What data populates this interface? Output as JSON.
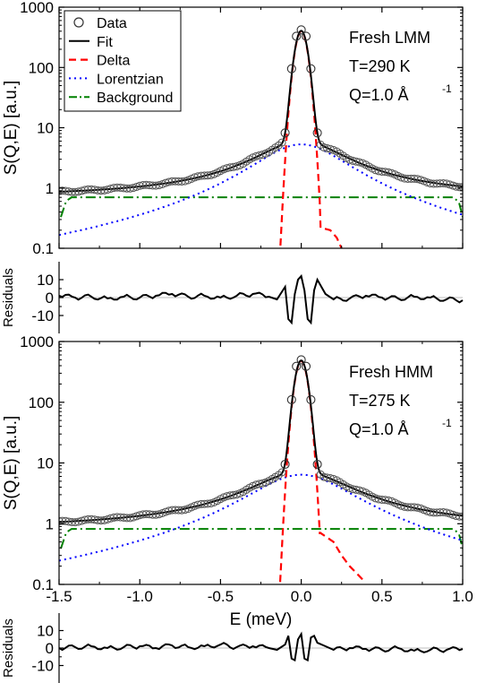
{
  "chart_data": [
    {
      "type": "line",
      "panel": "LMM spectrum",
      "ylabel": "S(Q,E) [a.u.]",
      "yscale": "log",
      "ylim": [
        0.1,
        1000
      ],
      "yticks": [
        "0.1",
        "1",
        "10",
        "100",
        "1000"
      ],
      "xlim": [
        -1.5,
        1.0
      ],
      "xticks": [
        -1.5,
        -1.0,
        -0.5,
        0.0,
        0.5,
        1.0
      ],
      "legend": {
        "placement": "top-left",
        "entries": [
          "Data",
          "Fit",
          "Delta",
          "Lorentzian",
          "Background"
        ]
      },
      "annotations": [
        "Fresh LMM",
        "T=290 K",
        "Q=1.0 Å",
        "-1"
      ],
      "model": {
        "delta": {
          "amplitude": 400,
          "center": 0.0,
          "width": 0.045
        },
        "lorentzian": {
          "amplitude": 5.3,
          "center": 0.0,
          "hwhm": 0.27
        },
        "background": 0.7
      },
      "series": [
        {
          "name": "Data",
          "style": "open circles",
          "x": [
            -1.5,
            -1.4,
            -1.3,
            -1.2,
            -1.1,
            -1.0,
            -0.9,
            -0.8,
            -0.7,
            -0.6,
            -0.5,
            -0.4,
            -0.3,
            -0.2,
            -0.15,
            -0.1,
            -0.06,
            -0.03,
            0.0,
            0.03,
            0.06,
            0.1,
            0.15,
            0.2,
            0.3,
            0.4,
            0.5,
            0.6,
            0.7,
            0.8,
            0.9,
            1.0
          ],
          "y": [
            0.78,
            0.8,
            0.81,
            0.83,
            0.85,
            0.88,
            0.91,
            0.96,
            1.02,
            1.12,
            1.28,
            1.58,
            2.15,
            3.3,
            4.5,
            8.2,
            95,
            330,
            420,
            330,
            95,
            8.2,
            4.5,
            3.2,
            2.0,
            1.45,
            1.15,
            0.98,
            0.88,
            0.82,
            0.78,
            0.72
          ]
        },
        {
          "name": "Fit",
          "style": "black line"
        },
        {
          "name": "Delta",
          "style": "red dashed",
          "x": [
            0.12,
            0.18,
            0.22,
            0.25
          ],
          "y": [
            0.22,
            0.2,
            0.15,
            0.1
          ]
        },
        {
          "name": "Lorentzian",
          "style": "blue dotted"
        },
        {
          "name": "Background",
          "style": "green dash-dot"
        }
      ]
    },
    {
      "type": "line",
      "panel": "LMM residuals",
      "ylabel": "Residuals",
      "ylim": [
        -20,
        20
      ],
      "yticks": [
        "10",
        "0",
        "-10"
      ],
      "xlim": [
        -1.5,
        1.0
      ],
      "series": [
        {
          "name": "Residuals",
          "x": [
            -1.5,
            -1.4,
            -1.3,
            -1.2,
            -1.1,
            -1.0,
            -0.9,
            -0.8,
            -0.7,
            -0.6,
            -0.5,
            -0.4,
            -0.3,
            -0.2,
            -0.15,
            -0.1,
            -0.08,
            -0.06,
            -0.04,
            -0.02,
            0.0,
            0.02,
            0.04,
            0.06,
            0.08,
            0.1,
            0.15,
            0.2,
            0.3,
            0.4,
            0.5,
            0.6,
            0.7,
            0.8,
            0.9,
            1.0
          ],
          "y": [
            1,
            0,
            0.5,
            -0.5,
            0.5,
            0,
            1,
            2,
            0.5,
            1,
            0,
            1,
            2,
            0.5,
            -1,
            6,
            -12,
            -14,
            2,
            10,
            12,
            4,
            -12,
            -14,
            4,
            10,
            2,
            -1,
            -0.5,
            1,
            0,
            -0.5,
            0.5,
            0,
            -1,
            -1.5
          ]
        }
      ]
    },
    {
      "type": "line",
      "panel": "HMM spectrum",
      "ylabel": "S(Q,E) [a.u.]",
      "xlabel": "E (meV)",
      "yscale": "log",
      "ylim": [
        0.1,
        1000
      ],
      "yticks": [
        "0.1",
        "1",
        "10",
        "100",
        "1000"
      ],
      "xlim": [
        -1.5,
        1.0
      ],
      "xticks": [
        -1.5,
        -1.0,
        -0.5,
        0.0,
        0.5,
        1.0
      ],
      "xticklabels": [
        "-1.5",
        "-1.0",
        "-0.5",
        "0.0",
        "0.5",
        "1.0"
      ],
      "annotations": [
        "Fresh HMM",
        "T=275 K",
        "Q=1.0 Å",
        "-1"
      ],
      "model": {
        "delta": {
          "amplitude": 480,
          "center": 0.0,
          "width": 0.045
        },
        "lorentzian": {
          "amplitude": 6.4,
          "center": 0.0,
          "hwhm": 0.3
        },
        "background": 0.82
      },
      "series": [
        {
          "name": "Data",
          "style": "open circles",
          "x": [
            -1.5,
            -1.4,
            -1.3,
            -1.2,
            -1.1,
            -1.0,
            -0.9,
            -0.8,
            -0.7,
            -0.6,
            -0.5,
            -0.4,
            -0.3,
            -0.2,
            -0.15,
            -0.1,
            -0.06,
            -0.03,
            0.0,
            0.03,
            0.06,
            0.1,
            0.15,
            0.2,
            0.3,
            0.4,
            0.5,
            0.6,
            0.7,
            0.8,
            0.9,
            1.0
          ],
          "y": [
            0.95,
            0.97,
            1.0,
            1.03,
            1.06,
            1.1,
            1.15,
            1.22,
            1.32,
            1.46,
            1.68,
            2.05,
            2.8,
            4.2,
            5.6,
            9.5,
            110,
            390,
            500,
            390,
            110,
            9.5,
            5.6,
            4.0,
            2.6,
            1.85,
            1.45,
            1.22,
            1.08,
            1.0,
            0.95,
            0.9
          ]
        },
        {
          "name": "Fit",
          "style": "black line"
        },
        {
          "name": "Delta",
          "style": "red dashed",
          "x": [
            0.12,
            0.2,
            0.25,
            0.3,
            0.38
          ],
          "y": [
            0.7,
            0.5,
            0.3,
            0.2,
            0.12
          ]
        },
        {
          "name": "Lorentzian",
          "style": "blue dotted"
        },
        {
          "name": "Background",
          "style": "green dash-dot"
        }
      ]
    },
    {
      "type": "line",
      "panel": "HMM residuals",
      "ylabel": "Residuals",
      "ylim": [
        -20,
        20
      ],
      "yticks": [
        "10",
        "0",
        "-10"
      ],
      "xlim": [
        -1.5,
        1.0
      ],
      "series": [
        {
          "name": "Residuals",
          "x": [
            -1.5,
            -1.4,
            -1.3,
            -1.2,
            -1.1,
            -1.0,
            -0.9,
            -0.8,
            -0.7,
            -0.6,
            -0.5,
            -0.4,
            -0.3,
            -0.2,
            -0.15,
            -0.1,
            -0.08,
            -0.06,
            -0.04,
            -0.02,
            0.0,
            0.02,
            0.04,
            0.06,
            0.08,
            0.1,
            0.15,
            0.2,
            0.3,
            0.4,
            0.5,
            0.6,
            0.7,
            0.8,
            0.9,
            1.0
          ],
          "y": [
            0,
            0.5,
            1,
            0,
            0.5,
            1,
            0,
            1.5,
            0.5,
            1,
            2,
            0.5,
            1,
            0,
            -1,
            2,
            7,
            -6,
            -7,
            5,
            8,
            -6,
            -7,
            6,
            7,
            3,
            1,
            -1,
            0,
            -0.5,
            -1,
            0,
            -1.5,
            -1,
            -1,
            -0.5
          ]
        }
      ]
    }
  ]
}
